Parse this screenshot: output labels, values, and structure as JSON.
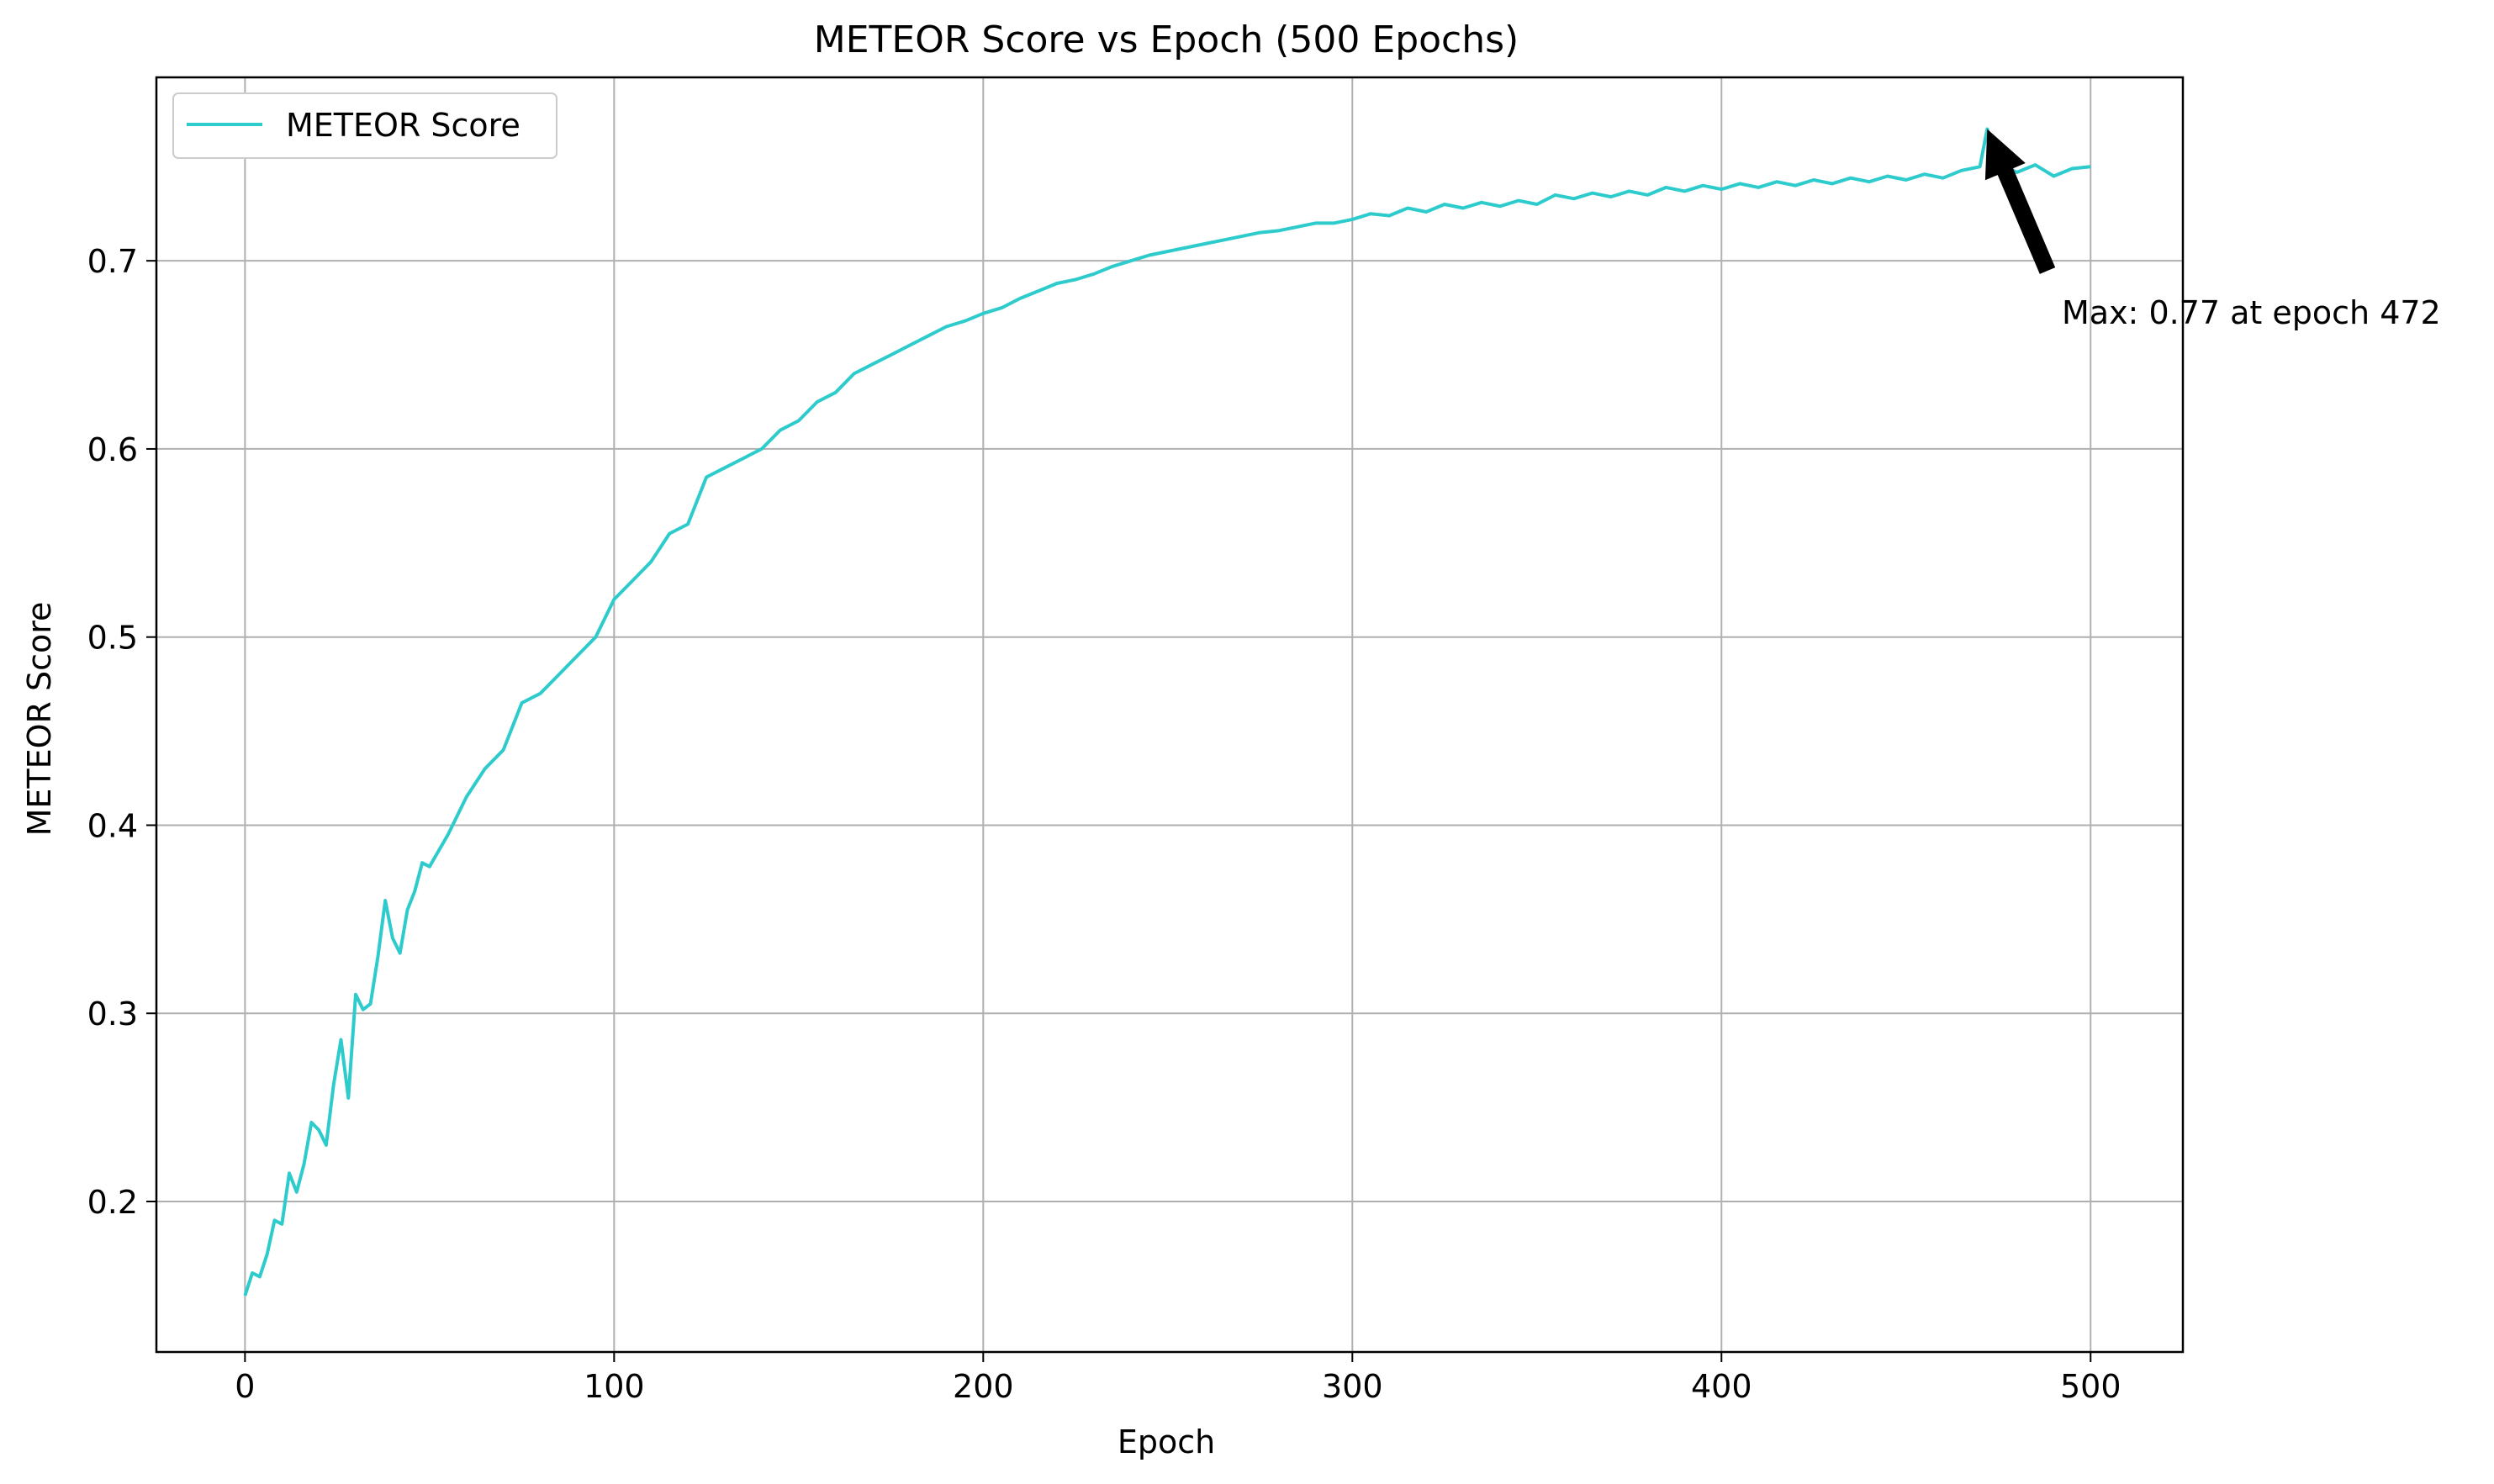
{
  "chart_data": {
    "type": "line",
    "title": "METEOR Score vs Epoch (500 Epochs)",
    "xlabel": "Epoch",
    "ylabel": "METEOR Score",
    "xlim": [
      -24,
      525
    ],
    "ylim": [
      0.12,
      0.7975
    ],
    "xticks": [
      0,
      100,
      200,
      300,
      400,
      500
    ],
    "yticks": [
      0.2,
      0.3,
      0.4,
      0.5,
      0.6,
      0.7
    ],
    "grid": true,
    "legend_position": "top-left",
    "series": [
      {
        "name": "METEOR Score",
        "color": "#2ecbcd",
        "x": [
          0,
          2,
          4,
          6,
          8,
          10,
          12,
          14,
          16,
          18,
          20,
          22,
          24,
          26,
          28,
          30,
          32,
          34,
          36,
          38,
          40,
          42,
          44,
          46,
          48,
          50,
          55,
          60,
          65,
          70,
          75,
          80,
          85,
          90,
          95,
          100,
          105,
          110,
          115,
          120,
          125,
          130,
          135,
          140,
          145,
          150,
          155,
          160,
          165,
          170,
          175,
          180,
          185,
          190,
          195,
          200,
          205,
          210,
          215,
          220,
          225,
          230,
          235,
          240,
          245,
          250,
          255,
          260,
          265,
          270,
          275,
          280,
          285,
          290,
          295,
          300,
          305,
          310,
          315,
          320,
          325,
          330,
          335,
          340,
          345,
          350,
          355,
          360,
          365,
          370,
          375,
          380,
          385,
          390,
          395,
          400,
          405,
          410,
          415,
          420,
          425,
          430,
          435,
          440,
          445,
          450,
          455,
          460,
          465,
          470,
          472,
          475,
          480,
          485,
          490,
          495,
          500
        ],
        "y": [
          0.15,
          0.162,
          0.16,
          0.172,
          0.19,
          0.188,
          0.215,
          0.205,
          0.22,
          0.242,
          0.238,
          0.23,
          0.262,
          0.286,
          0.255,
          0.31,
          0.302,
          0.305,
          0.33,
          0.36,
          0.34,
          0.332,
          0.355,
          0.365,
          0.38,
          0.378,
          0.395,
          0.415,
          0.43,
          0.44,
          0.465,
          0.47,
          0.48,
          0.49,
          0.5,
          0.52,
          0.53,
          0.54,
          0.555,
          0.56,
          0.585,
          0.59,
          0.595,
          0.6,
          0.61,
          0.615,
          0.625,
          0.63,
          0.64,
          0.645,
          0.65,
          0.655,
          0.66,
          0.665,
          0.668,
          0.672,
          0.675,
          0.68,
          0.684,
          0.688,
          0.69,
          0.693,
          0.697,
          0.7,
          0.703,
          0.705,
          0.707,
          0.709,
          0.711,
          0.713,
          0.715,
          0.716,
          0.718,
          0.72,
          0.72,
          0.722,
          0.725,
          0.724,
          0.728,
          0.726,
          0.73,
          0.728,
          0.731,
          0.729,
          0.732,
          0.73,
          0.735,
          0.733,
          0.736,
          0.734,
          0.737,
          0.735,
          0.739,
          0.737,
          0.74,
          0.738,
          0.741,
          0.739,
          0.742,
          0.74,
          0.743,
          0.741,
          0.744,
          0.742,
          0.745,
          0.743,
          0.746,
          0.744,
          0.748,
          0.75,
          0.77,
          0.752,
          0.747,
          0.751,
          0.745,
          0.749,
          0.75
        ]
      }
    ],
    "annotation": {
      "text": "Max: 0.77 at epoch 472",
      "point": [
        472,
        0.77
      ]
    }
  }
}
